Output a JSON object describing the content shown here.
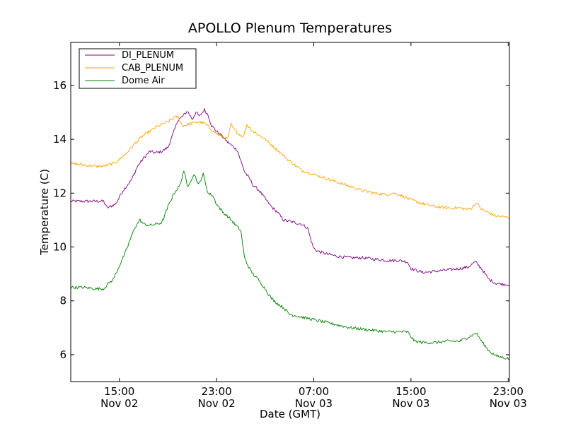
{
  "chart_data": {
    "type": "line",
    "title": "APOLLO Plenum Temperatures",
    "xlabel": "Date (GMT)",
    "ylabel": "Temperature (C)",
    "xlim": [
      11.0,
      47.1
    ],
    "ylim": [
      5.0,
      17.6
    ],
    "x_unit": "hours since 2012-11-02 00:00 GMT",
    "x_ticks": [
      {
        "value": 15,
        "line1": "15:00",
        "line2": "Nov 02"
      },
      {
        "value": 23,
        "line1": "23:00",
        "line2": "Nov 02"
      },
      {
        "value": 31,
        "line1": "07:00",
        "line2": "Nov 03"
      },
      {
        "value": 39,
        "line1": "15:00",
        "line2": "Nov 03"
      },
      {
        "value": 47,
        "line1": "23:00",
        "line2": "Nov 03"
      }
    ],
    "y_ticks": [
      6,
      8,
      10,
      12,
      14,
      16
    ],
    "grid": false,
    "legend_position": "top-left",
    "series": [
      {
        "name": "DI_PLENUM",
        "color": "#800080",
        "x": [
          11.0,
          12.0,
          13.0,
          13.7,
          14.0,
          14.7,
          15.3,
          16.0,
          16.5,
          17.0,
          17.5,
          18.0,
          18.5,
          19.0,
          19.5,
          19.8,
          20.2,
          20.6,
          21.0,
          21.3,
          21.6,
          22.0,
          22.3,
          22.6,
          23.0,
          23.5,
          23.9,
          24.3,
          24.7,
          25.0,
          25.3,
          25.7,
          26.0,
          26.5,
          27.0,
          27.5,
          28.0,
          28.5,
          29.0,
          29.5,
          30.0,
          30.5,
          30.8,
          31.0,
          31.3,
          32.0,
          33.0,
          34.0,
          35.0,
          36.0,
          37.0,
          38.0,
          38.7,
          39.0,
          40.0,
          41.0,
          42.0,
          43.0,
          43.7,
          44.3,
          44.8,
          45.4,
          46.0,
          47.1
        ],
        "values": [
          11.7,
          11.7,
          11.7,
          11.7,
          11.45,
          11.6,
          12.1,
          12.5,
          13.0,
          13.3,
          13.55,
          13.5,
          13.55,
          13.7,
          14.3,
          14.7,
          14.85,
          15.05,
          14.75,
          15.0,
          14.85,
          15.1,
          14.9,
          14.5,
          14.3,
          14.1,
          13.9,
          13.75,
          13.6,
          13.2,
          12.8,
          12.55,
          12.3,
          12.1,
          11.8,
          11.5,
          11.3,
          11.0,
          10.95,
          10.9,
          10.85,
          10.7,
          10.2,
          9.95,
          9.85,
          9.75,
          9.65,
          9.6,
          9.6,
          9.55,
          9.5,
          9.5,
          9.45,
          9.2,
          9.05,
          9.1,
          9.15,
          9.2,
          9.25,
          9.45,
          9.2,
          8.8,
          8.65,
          8.6
        ]
      },
      {
        "name": "CAB_PLENUM",
        "color": "#ffa500",
        "x": [
          11.0,
          12.0,
          13.0,
          13.7,
          14.5,
          15.0,
          15.5,
          16.0,
          16.5,
          17.0,
          17.5,
          18.0,
          18.5,
          19.0,
          19.5,
          19.8,
          20.2,
          20.6,
          21.0,
          21.5,
          22.0,
          22.5,
          23.0,
          23.5,
          23.9,
          24.2,
          24.4,
          24.8,
          25.2,
          25.5,
          26.0,
          27.0,
          28.0,
          29.0,
          30.0,
          31.0,
          32.0,
          33.0,
          34.0,
          35.0,
          36.0,
          37.0,
          37.5,
          38.0,
          39.0,
          40.0,
          41.0,
          42.0,
          43.0,
          43.6,
          44.0,
          44.4,
          44.8,
          45.5,
          46.0,
          47.1
        ],
        "values": [
          13.1,
          13.05,
          13.0,
          13.0,
          13.1,
          13.25,
          13.45,
          13.7,
          13.95,
          14.15,
          14.3,
          14.45,
          14.55,
          14.65,
          14.8,
          14.85,
          14.5,
          14.55,
          14.6,
          14.65,
          14.6,
          14.4,
          14.2,
          14.1,
          14.0,
          14.55,
          14.4,
          14.2,
          14.1,
          14.55,
          14.3,
          14.0,
          13.6,
          13.2,
          12.85,
          12.7,
          12.55,
          12.4,
          12.25,
          12.1,
          12.0,
          11.95,
          12.0,
          11.95,
          11.75,
          11.6,
          11.5,
          11.45,
          11.45,
          11.4,
          11.45,
          11.65,
          11.4,
          11.25,
          11.15,
          11.1
        ]
      },
      {
        "name": "Dome Air",
        "color": "#008000",
        "x": [
          11.0,
          12.0,
          13.0,
          13.7,
          14.0,
          14.5,
          15.0,
          15.5,
          16.0,
          16.3,
          16.7,
          17.0,
          17.5,
          18.0,
          18.5,
          19.0,
          19.5,
          20.0,
          20.3,
          20.6,
          20.9,
          21.2,
          21.5,
          21.9,
          22.3,
          22.7,
          23.0,
          23.5,
          24.0,
          24.5,
          25.0,
          25.3,
          25.7,
          26.0,
          26.5,
          27.0,
          27.5,
          28.0,
          28.5,
          29.0,
          30.0,
          31.0,
          32.0,
          33.0,
          34.0,
          35.0,
          36.0,
          37.0,
          38.0,
          38.7,
          39.3,
          40.0,
          41.0,
          42.0,
          43.0,
          43.7,
          44.4,
          44.8,
          45.4,
          46.0,
          47.1
        ],
        "values": [
          8.5,
          8.5,
          8.45,
          8.45,
          8.6,
          8.8,
          9.3,
          9.8,
          10.4,
          10.75,
          11.0,
          10.85,
          10.8,
          10.85,
          10.9,
          11.5,
          12.0,
          12.3,
          12.85,
          12.25,
          12.5,
          12.7,
          12.3,
          12.7,
          12.0,
          11.9,
          11.6,
          11.3,
          11.1,
          10.85,
          10.6,
          9.6,
          9.2,
          9.0,
          8.75,
          8.45,
          8.1,
          7.9,
          7.75,
          7.5,
          7.4,
          7.3,
          7.2,
          7.1,
          7.0,
          6.95,
          6.9,
          6.85,
          6.85,
          6.85,
          6.5,
          6.45,
          6.45,
          6.5,
          6.5,
          6.65,
          6.8,
          6.5,
          6.15,
          5.95,
          5.85
        ]
      }
    ]
  }
}
